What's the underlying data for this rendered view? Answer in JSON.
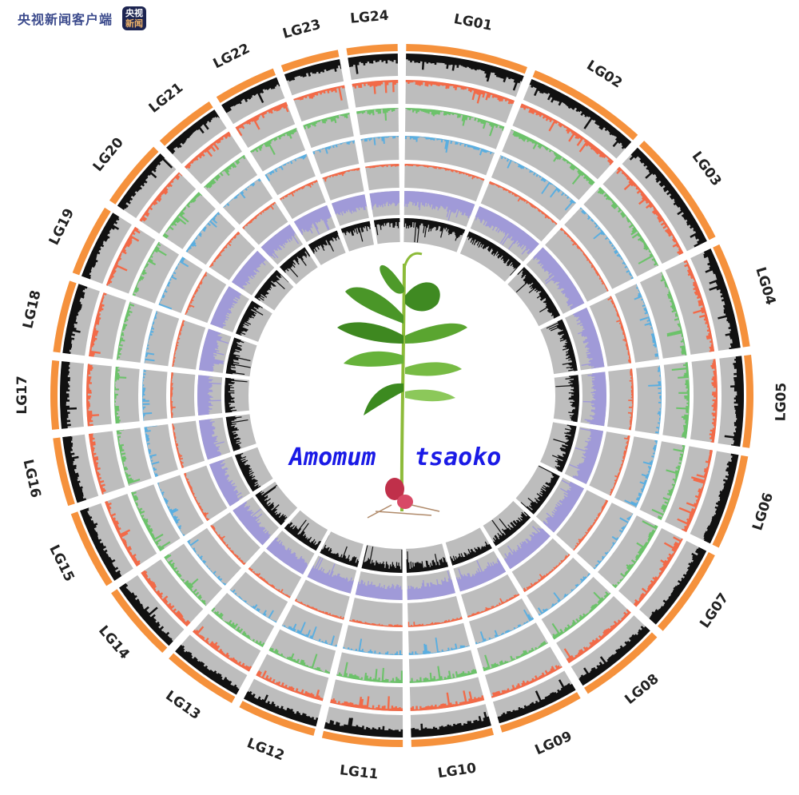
{
  "watermark": {
    "text": "央视新闻客户端",
    "logo_line1": "央视",
    "logo_line2": "新闻"
  },
  "chromosomes": [
    "LG01",
    "LG02",
    "LG03",
    "LG04",
    "LG05",
    "LG06",
    "LG07",
    "LG08",
    "LG09",
    "LG10",
    "LG11",
    "LG12",
    "LG13",
    "LG14",
    "LG15",
    "LG16",
    "LG17",
    "LG18",
    "LG19",
    "LG20",
    "LG21",
    "LG22",
    "LG23",
    "LG24"
  ],
  "species_label": {
    "genus": "Amomum",
    "epithet": "tsaoko"
  },
  "colors": {
    "chromosome_ring": "#f5913c",
    "track1": "#111111",
    "track2": "#f26a48",
    "track3": "#6cc26a",
    "track4": "#5aaee0",
    "track5": "#f26a48",
    "track6": "#a09ad8",
    "track7": "#111111",
    "track_background": "#bdbdbd"
  }
}
